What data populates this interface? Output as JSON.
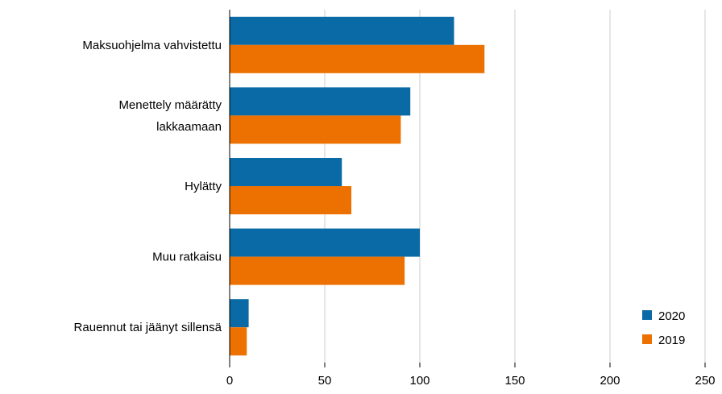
{
  "chart_data": {
    "type": "bar",
    "orientation": "horizontal",
    "categories": [
      [
        "Maksuohjelma vahvistettu"
      ],
      [
        "Menettely määrätty",
        "lakkaamaan"
      ],
      [
        "Hylätty"
      ],
      [
        "Muu ratkaisu"
      ],
      [
        "Rauennut tai jäänyt sillensä"
      ]
    ],
    "series": [
      {
        "name": "2020",
        "color": "#0a6aa6",
        "values": [
          118,
          95,
          59,
          100,
          10
        ]
      },
      {
        "name": "2019",
        "color": "#ec7100",
        "values": [
          134,
          90,
          64,
          92,
          9
        ]
      }
    ],
    "xlim": [
      0,
      250
    ],
    "xticks": [
      "0",
      "50",
      "100",
      "150",
      "200",
      "250"
    ],
    "grid": true,
    "legend": "bottom-right"
  }
}
